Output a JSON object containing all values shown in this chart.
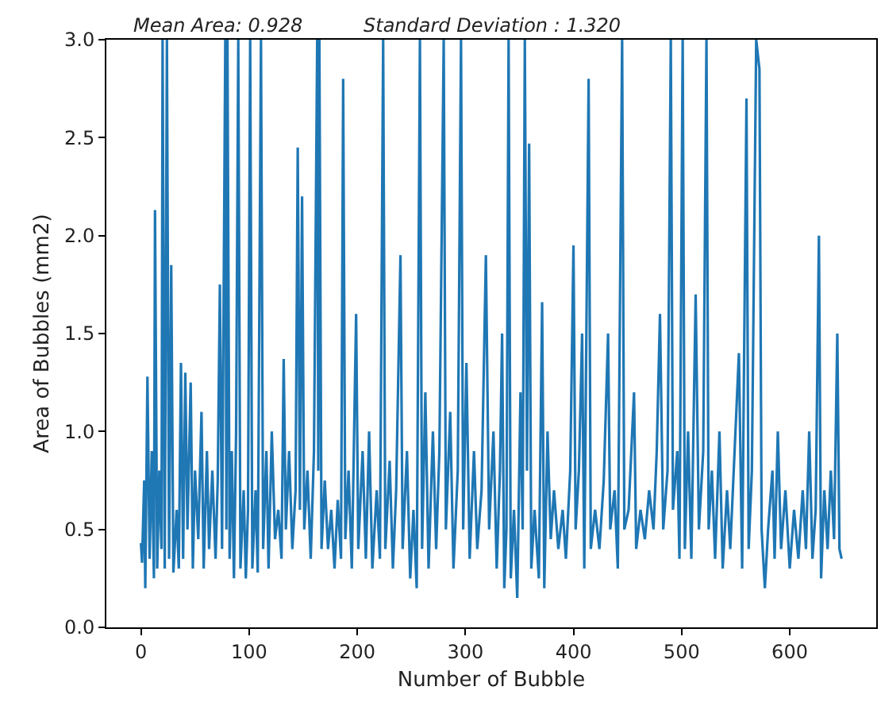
{
  "chart_data": {
    "type": "line",
    "annotations": [
      "Mean Area: 0.928",
      "Standard Deviation : 1.320"
    ],
    "xlabel": "Number of Bubble",
    "ylabel": "Area of Bubbles (mm2)",
    "x": [
      0,
      1,
      3,
      4,
      6,
      8,
      10,
      12,
      13,
      15,
      17,
      19,
      20,
      22,
      24,
      26,
      28,
      30,
      33,
      35,
      37,
      39,
      41,
      43,
      46,
      48,
      50,
      53,
      56,
      58,
      61,
      63,
      66,
      69,
      71,
      73,
      75,
      78,
      79,
      80,
      82,
      84,
      86,
      88,
      90,
      92,
      95,
      97,
      99,
      101,
      103,
      106,
      108,
      111,
      113,
      116,
      118,
      121,
      124,
      127,
      130,
      132,
      134,
      137,
      140,
      143,
      145,
      147,
      149,
      151,
      154,
      157,
      160,
      163,
      164,
      165,
      167,
      170,
      173,
      176,
      179,
      182,
      185,
      187,
      189,
      192,
      195,
      199,
      201,
      205,
      208,
      211,
      214,
      218,
      221,
      224,
      226,
      230,
      233,
      236,
      240,
      242,
      246,
      249,
      252,
      255,
      258,
      260,
      263,
      266,
      270,
      273,
      276,
      280,
      282,
      286,
      289,
      293,
      296,
      298,
      301,
      304,
      308,
      311,
      315,
      319,
      322,
      326,
      329,
      332,
      334,
      336,
      338,
      340,
      342,
      345,
      348,
      351,
      353,
      355,
      357,
      359,
      361,
      364,
      368,
      371,
      373,
      376,
      379,
      382,
      386,
      390,
      393,
      397,
      400,
      402,
      405,
      408,
      410,
      414,
      416,
      420,
      424,
      428,
      432,
      434,
      438,
      441,
      445,
      447,
      451,
      456,
      458,
      462,
      466,
      470,
      474,
      477,
      480,
      483,
      487,
      490,
      492,
      496,
      498,
      501,
      503,
      506,
      509,
      513,
      516,
      520,
      523,
      525,
      528,
      531,
      535,
      538,
      542,
      545,
      549,
      553,
      556,
      560,
      562,
      565,
      569,
      572,
      574,
      577,
      580,
      584,
      586,
      589,
      592,
      596,
      600,
      604,
      608,
      612,
      615,
      618,
      621,
      624,
      627,
      629,
      632,
      635,
      638,
      641,
      644,
      646,
      648
    ],
    "series": [
      {
        "color": "#1f77b4",
        "values": [
          0.43,
          0.33,
          0.75,
          0.2,
          1.28,
          0.35,
          0.9,
          0.25,
          2.13,
          0.3,
          0.8,
          0.4,
          3.0,
          0.3,
          3.0,
          0.35,
          1.85,
          0.28,
          0.6,
          0.3,
          1.35,
          0.35,
          1.3,
          0.5,
          1.25,
          0.3,
          0.8,
          0.45,
          1.1,
          0.3,
          0.9,
          0.4,
          0.8,
          0.35,
          0.75,
          1.75,
          0.4,
          3.0,
          0.5,
          3.0,
          0.35,
          0.9,
          0.25,
          1.0,
          3.0,
          0.3,
          0.7,
          0.25,
          0.6,
          3.0,
          0.3,
          0.7,
          0.28,
          3.0,
          0.4,
          0.9,
          0.3,
          1.0,
          0.45,
          0.6,
          0.35,
          1.37,
          0.5,
          0.9,
          0.4,
          0.7,
          2.45,
          0.6,
          2.2,
          0.5,
          0.8,
          0.35,
          0.9,
          3.0,
          0.8,
          3.0,
          0.4,
          0.75,
          0.4,
          0.6,
          0.3,
          0.65,
          0.35,
          2.8,
          0.45,
          0.8,
          0.3,
          1.6,
          0.4,
          0.9,
          0.35,
          1.0,
          0.3,
          0.7,
          0.35,
          3.0,
          0.4,
          0.85,
          0.3,
          0.7,
          1.9,
          0.4,
          0.9,
          0.25,
          0.6,
          0.2,
          3.0,
          0.4,
          1.2,
          0.3,
          1.0,
          0.4,
          0.9,
          3.0,
          0.5,
          1.1,
          0.3,
          0.8,
          3.0,
          0.5,
          1.35,
          0.35,
          0.9,
          0.4,
          0.7,
          1.9,
          0.5,
          1.0,
          0.3,
          0.8,
          1.5,
          0.2,
          0.5,
          3.0,
          0.25,
          0.6,
          0.15,
          1.2,
          0.5,
          3.0,
          0.8,
          2.47,
          0.3,
          0.6,
          0.25,
          1.66,
          0.2,
          1.0,
          0.45,
          0.7,
          0.4,
          0.6,
          0.35,
          0.8,
          1.95,
          0.5,
          0.8,
          1.5,
          0.3,
          2.8,
          0.4,
          0.6,
          0.4,
          0.75,
          1.5,
          0.5,
          0.7,
          0.3,
          3.0,
          0.5,
          0.6,
          1.2,
          0.4,
          0.6,
          0.45,
          0.7,
          0.5,
          0.9,
          1.6,
          0.5,
          0.8,
          3.0,
          0.6,
          0.9,
          0.35,
          3.0,
          0.4,
          1.0,
          0.35,
          1.7,
          0.5,
          0.9,
          3.0,
          0.5,
          0.8,
          0.35,
          1.0,
          0.3,
          0.7,
          0.4,
          0.9,
          1.4,
          0.3,
          2.7,
          0.4,
          0.8,
          3.0,
          2.85,
          0.5,
          0.2,
          0.5,
          0.8,
          0.35,
          1.0,
          0.4,
          0.7,
          0.3,
          0.6,
          0.35,
          0.7,
          0.4,
          1.0,
          0.35,
          0.6,
          2.0,
          0.25,
          0.7,
          0.4,
          0.8,
          0.45,
          1.5,
          0.4,
          0.35
        ]
      }
    ],
    "xlim": [
      -32,
      680
    ],
    "xticks": [
      0,
      100,
      200,
      300,
      400,
      500,
      600
    ],
    "ylim": [
      0,
      3.0
    ],
    "yticks": [
      {
        "value": 0,
        "label": "0.0"
      },
      {
        "value": 0.5,
        "label": "0.5"
      },
      {
        "value": 1,
        "label": "1.0"
      },
      {
        "value": 1.5,
        "label": "1.5"
      },
      {
        "value": 2,
        "label": "2.0"
      },
      {
        "value": 2.5,
        "label": "2.5"
      },
      {
        "value": 3,
        "label": "3.0"
      }
    ],
    "grid": false,
    "marker": "none",
    "line_style": "solid"
  }
}
